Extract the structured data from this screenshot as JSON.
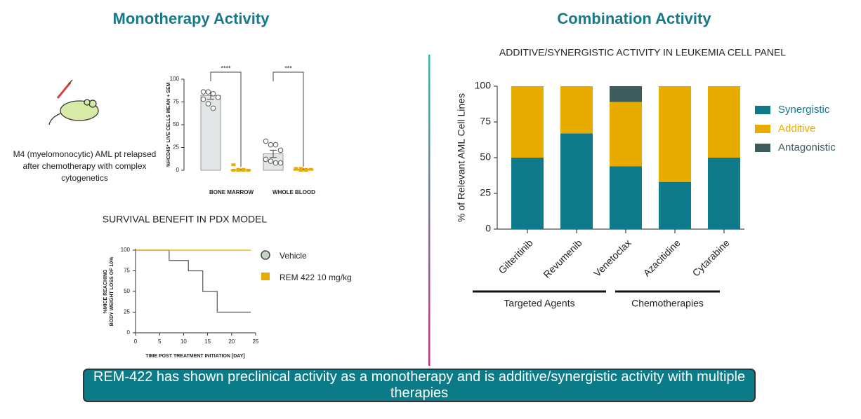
{
  "headings": {
    "left": "Monotherapy Activity",
    "right": "Combination Activity"
  },
  "model_caption": "M4 (myelomonocytic) AML pt relapsed after chemotherapy with complex cytogenetics",
  "banner": "REM-422 has shown preclinical activity as a monotherapy and is additive/synergistic activity with multiple therapies",
  "chart_data": [
    {
      "type": "dotbar",
      "y_label": "%HCD45⁺ LIVE CELLS MEAN + SEM",
      "categories": [
        "BONE MARROW",
        "WHOLE BLOOD"
      ],
      "annotations": [
        "****",
        "***"
      ],
      "ylim": [
        0,
        100
      ],
      "yticks": [
        0,
        25,
        50,
        75,
        100
      ],
      "series": [
        {
          "color": "#e3e6e7",
          "values": [
            82,
            18
          ],
          "errors": [
            4,
            4
          ],
          "points": [
            [
              86,
              86,
              84,
              80,
              78,
              73,
              68
            ],
            [
              32,
              28,
              28,
              22,
              12,
              10,
              8,
              8
            ]
          ]
        },
        {
          "color": "#e8ab00",
          "values": [
            0.5,
            1
          ],
          "errors": [
            0.5,
            0.5
          ],
          "points": [
            [
              6,
              1,
              1,
              0,
              0,
              0,
              0
            ],
            [
              2,
              2,
              1,
              1,
              1,
              0,
              0
            ]
          ]
        }
      ]
    },
    {
      "type": "step",
      "title": "SURVIVAL BENEFIT IN PDX MODEL",
      "x_label": "TIME POST TREATMENT INITIATION [DAY]",
      "y_label": [
        "%MICE REACHING",
        "BODY WEIGHT LOSS OF 10%"
      ],
      "xlim": [
        0,
        25
      ],
      "xticks": [
        0,
        5,
        10,
        15,
        20,
        25
      ],
      "ylim": [
        0,
        100
      ],
      "yticks": [
        0,
        25,
        50,
        75,
        100
      ],
      "legend": "right",
      "series": [
        {
          "name": "Vehicle",
          "color": "#555555",
          "marker": "circle",
          "x": [
            0,
            7,
            11,
            14,
            17,
            24
          ],
          "values": [
            100,
            87.5,
            75,
            50,
            25,
            25
          ]
        },
        {
          "name": "REM 422 10 mg/kg",
          "color": "#e8ab00",
          "marker": "square",
          "x": [
            0,
            24
          ],
          "values": [
            100,
            100
          ]
        }
      ]
    },
    {
      "type": "stacked_bar",
      "title": "ADDITIVE/SYNERGISTIC ACTIVITY IN LEUKEMIA CELL PANEL",
      "y_label": "% of Relevant AML Cell Lines",
      "categories": [
        "Gilteritinib",
        "Revumenib",
        "Venetoclax",
        "Azacitidine",
        "Cytarabine"
      ],
      "group_labels": [
        "Targeted Agents",
        "Chemotherapies"
      ],
      "ylim": [
        0,
        100
      ],
      "yticks": [
        0,
        25,
        50,
        75,
        100
      ],
      "legend": "right",
      "series": [
        {
          "name": "Synergistic",
          "color": "#0e7a8a",
          "values": [
            50,
            67,
            44,
            33,
            50
          ]
        },
        {
          "name": "Additive",
          "color": "#e8ab00",
          "values": [
            50,
            33,
            45,
            67,
            50
          ]
        },
        {
          "name": "Antagonistic",
          "color": "#3e5c5e",
          "values": [
            0,
            0,
            11,
            0,
            0
          ]
        }
      ]
    }
  ]
}
